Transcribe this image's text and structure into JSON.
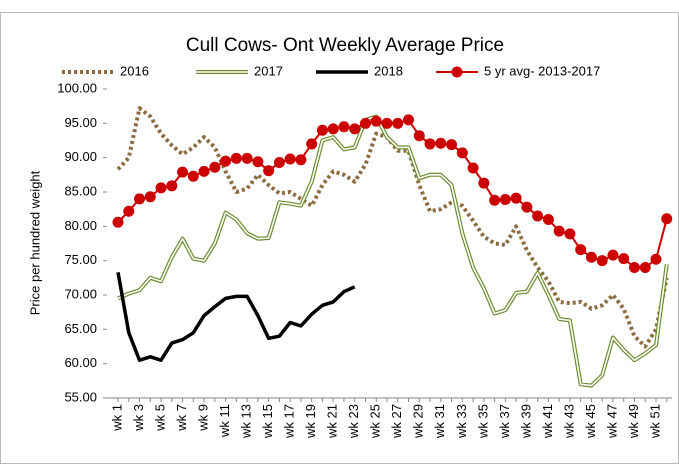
{
  "chart_data": {
    "type": "line",
    "title": "Cull Cows- Ont Weekly Average Price",
    "y_label": "Price per hundred weight",
    "categories": [
      "wk 1",
      null,
      "wk 3",
      null,
      "wk 5",
      null,
      "wk 7",
      null,
      "wk 9",
      null,
      "wk 11",
      null,
      "wk 13",
      null,
      "wk 15",
      null,
      "wk 17",
      null,
      "wk 19",
      null,
      "wk 21",
      null,
      "wk 23",
      null,
      "wk 25",
      null,
      "wk 27",
      null,
      "wk 29",
      null,
      "wk 31",
      null,
      "wk 33",
      null,
      "wk 35",
      null,
      "wk 37",
      null,
      "wk 39",
      null,
      "wk 41",
      null,
      "wk 43",
      null,
      "wk 45",
      null,
      "wk 47",
      null,
      "wk 49",
      null,
      "wk 51",
      null
    ],
    "ylim": [
      55,
      100
    ],
    "yticks": [
      {
        "value": 55,
        "label": "55.00"
      },
      {
        "value": 60,
        "label": "60.00"
      },
      {
        "value": 65,
        "label": "65.00"
      },
      {
        "value": 70,
        "label": "70.00"
      },
      {
        "value": 75,
        "label": "75.00"
      },
      {
        "value": 80,
        "label": "80.00"
      },
      {
        "value": 85,
        "label": "85.00"
      },
      {
        "value": 90,
        "label": "90.00"
      },
      {
        "value": 95,
        "label": "95.00"
      },
      {
        "value": 100,
        "label": "100.00"
      }
    ],
    "grid": false,
    "legend": "top",
    "series": [
      {
        "name": "2016",
        "color": "#8c6b3f",
        "style": "dotted",
        "values": [
          88.3,
          90.0,
          97.2,
          96.0,
          93.5,
          91.8,
          90.5,
          91.5,
          93.0,
          91.5,
          88.0,
          85.0,
          85.5,
          87.5,
          86.0,
          84.8,
          85.0,
          84.0,
          83.0,
          86.0,
          88.0,
          87.5,
          86.5,
          89.0,
          93.5,
          93.0,
          91.0,
          91.0,
          86.0,
          82.2,
          82.5,
          83.5,
          83.0,
          80.8,
          78.5,
          77.5,
          77.3,
          80.0,
          76.5,
          74.0,
          72.0,
          69.0,
          68.8,
          69.0,
          68.0,
          68.5,
          70.0,
          68.0,
          64.0,
          62.5,
          65.0,
          72.5
        ]
      },
      {
        "name": "2017",
        "color": "#6b8c2e",
        "style": "double",
        "values": [
          69.5,
          70.2,
          70.7,
          72.5,
          72.0,
          75.5,
          78.2,
          75.3,
          75.0,
          77.5,
          82.0,
          81.0,
          79.0,
          78.2,
          78.3,
          83.5,
          83.3,
          83.0,
          86.5,
          92.5,
          93.0,
          91.2,
          91.5,
          95.5,
          96.0,
          93.0,
          91.5,
          91.5,
          87.0,
          87.5,
          87.5,
          86.0,
          79.0,
          74.0,
          71.0,
          67.3,
          67.8,
          70.3,
          70.5,
          73.2,
          70.0,
          66.5,
          66.3,
          57.0,
          56.8,
          58.3,
          63.8,
          62.0,
          60.5,
          61.5,
          62.7,
          74.5
        ]
      },
      {
        "name": "2018",
        "color": "#000000",
        "style": "solid",
        "values": [
          73.3,
          64.5,
          60.5,
          61.0,
          60.5,
          63.0,
          63.5,
          64.5,
          67.0,
          68.3,
          69.5,
          69.8,
          69.8,
          67.0,
          63.7,
          64.0,
          66.0,
          65.5,
          67.2,
          68.5,
          69.0,
          70.5,
          71.2,
          null,
          null,
          null,
          null,
          null,
          null,
          null,
          null,
          null,
          null,
          null,
          null,
          null,
          null,
          null,
          null,
          null,
          null,
          null,
          null,
          null,
          null,
          null,
          null,
          null,
          null,
          null,
          null,
          null
        ]
      },
      {
        "name": "5 yr avg- 2013-2017",
        "color": "#cc0000",
        "style": "markers",
        "values": [
          80.6,
          82.2,
          84.0,
          84.3,
          85.6,
          85.9,
          87.9,
          87.3,
          88.0,
          88.6,
          89.5,
          89.9,
          89.9,
          89.4,
          88.1,
          89.3,
          89.8,
          89.7,
          92.0,
          94.0,
          94.2,
          94.5,
          94.2,
          95.0,
          95.3,
          95.0,
          95.0,
          95.5,
          93.2,
          92.0,
          92.1,
          91.9,
          90.7,
          88.5,
          86.3,
          83.8,
          83.9,
          84.1,
          82.8,
          81.5,
          81.0,
          79.3,
          78.9,
          76.6,
          75.5,
          75.0,
          75.8,
          75.3,
          74.0,
          74.0,
          75.2,
          81.1
        ]
      }
    ]
  }
}
